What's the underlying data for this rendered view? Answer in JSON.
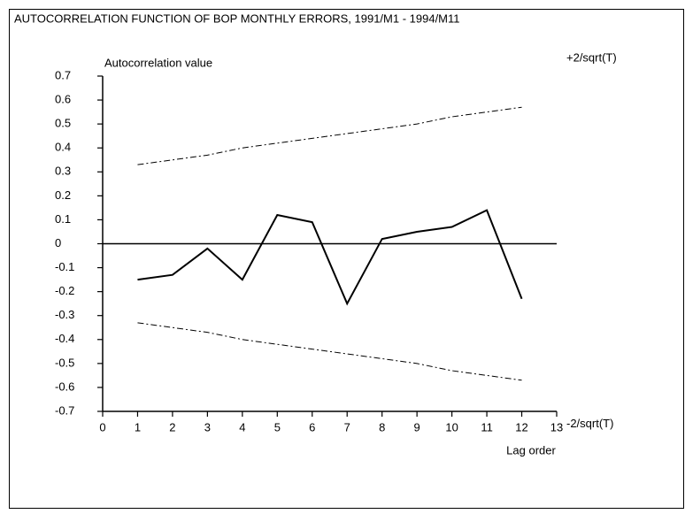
{
  "chart_data": {
    "type": "line",
    "title": "AUTOCORRELATION FUNCTION OF BOP MONTHLY ERRORS, 1991/M1 - 1994/M11",
    "y_label": "Autocorrelation value",
    "x_label": "Lag order",
    "x": [
      1,
      2,
      3,
      4,
      5,
      6,
      7,
      8,
      9,
      10,
      11,
      12
    ],
    "series": [
      {
        "color": "#000000",
        "style": "solid",
        "values": [
          -0.15,
          -0.13,
          -0.02,
          -0.15,
          0.12,
          0.09,
          -0.25,
          0.02,
          0.05,
          0.07,
          0.14,
          -0.23
        ]
      },
      {
        "name": "+2/sqrt(T)",
        "color": "#000000",
        "style": "dashdot",
        "values": [
          0.33,
          0.35,
          0.37,
          0.4,
          0.42,
          0.44,
          0.46,
          0.48,
          0.5,
          0.53,
          0.55,
          0.57
        ]
      },
      {
        "name": "-2/sqrt(T)",
        "color": "#000000",
        "style": "dashdot",
        "values": [
          -0.33,
          -0.35,
          -0.37,
          -0.4,
          -0.42,
          -0.44,
          -0.46,
          -0.48,
          -0.5,
          -0.53,
          -0.55,
          -0.57
        ]
      }
    ],
    "xlim": [
      0,
      13
    ],
    "xticks": [
      0,
      1,
      2,
      3,
      4,
      5,
      6,
      7,
      8,
      9,
      10,
      11,
      12,
      13
    ],
    "ylim": [
      -0.7,
      0.7
    ],
    "yticks": [
      0.7,
      0.6,
      0.5,
      0.4,
      0.3,
      0.2,
      0.1,
      0,
      -0.1,
      -0.2,
      -0.3,
      -0.4,
      -0.5,
      -0.6,
      -0.7
    ],
    "zero_line": true
  }
}
